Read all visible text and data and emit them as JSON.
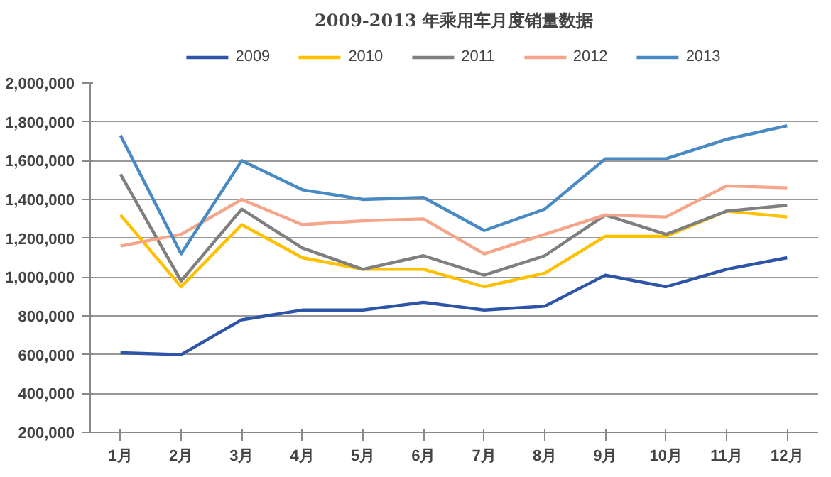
{
  "chart_data": {
    "type": "line",
    "title": "2009-2013 年乘用车月度销量数据",
    "categories": [
      "1月",
      "2月",
      "3月",
      "4月",
      "5月",
      "6月",
      "7月",
      "8月",
      "9月",
      "10月",
      "11月",
      "12月"
    ],
    "series": [
      {
        "name": "2009",
        "color": "#2e54a8",
        "values": [
          610000,
          600000,
          780000,
          830000,
          830000,
          870000,
          830000,
          850000,
          1010000,
          950000,
          1040000,
          1100000
        ]
      },
      {
        "name": "2010",
        "color": "#ffc000",
        "values": [
          1320000,
          950000,
          1270000,
          1100000,
          1040000,
          1040000,
          950000,
          1020000,
          1210000,
          1210000,
          1340000,
          1310000
        ]
      },
      {
        "name": "2011",
        "color": "#7f7f7f",
        "values": [
          1530000,
          980000,
          1350000,
          1150000,
          1040000,
          1110000,
          1010000,
          1110000,
          1320000,
          1220000,
          1340000,
          1370000
        ]
      },
      {
        "name": "2012",
        "color": "#f4a58a",
        "values": [
          1160000,
          1220000,
          1400000,
          1270000,
          1290000,
          1300000,
          1120000,
          1220000,
          1320000,
          1310000,
          1470000,
          1460000
        ]
      },
      {
        "name": "2013",
        "color": "#4a8ac4",
        "values": [
          1730000,
          1120000,
          1600000,
          1450000,
          1400000,
          1410000,
          1240000,
          1350000,
          1610000,
          1610000,
          1710000,
          1780000
        ]
      }
    ],
    "ylim": [
      200000,
      2000000
    ],
    "yticks": [
      {
        "value": 200000,
        "label": "200,000"
      },
      {
        "value": 400000,
        "label": "400,000"
      },
      {
        "value": 600000,
        "label": "600,000"
      },
      {
        "value": 800000,
        "label": "800,000"
      },
      {
        "value": 1000000,
        "label": "1,000,000"
      },
      {
        "value": 1200000,
        "label": "1,200,000"
      },
      {
        "value": 1400000,
        "label": "1,400,000"
      },
      {
        "value": 1600000,
        "label": "1,600,000"
      },
      {
        "value": 1800000,
        "label": "1,800,000"
      },
      {
        "value": 2000000,
        "label": "2,000,000"
      }
    ],
    "grid": "y",
    "legend": "top",
    "marker": "none",
    "line_style": "solid"
  }
}
